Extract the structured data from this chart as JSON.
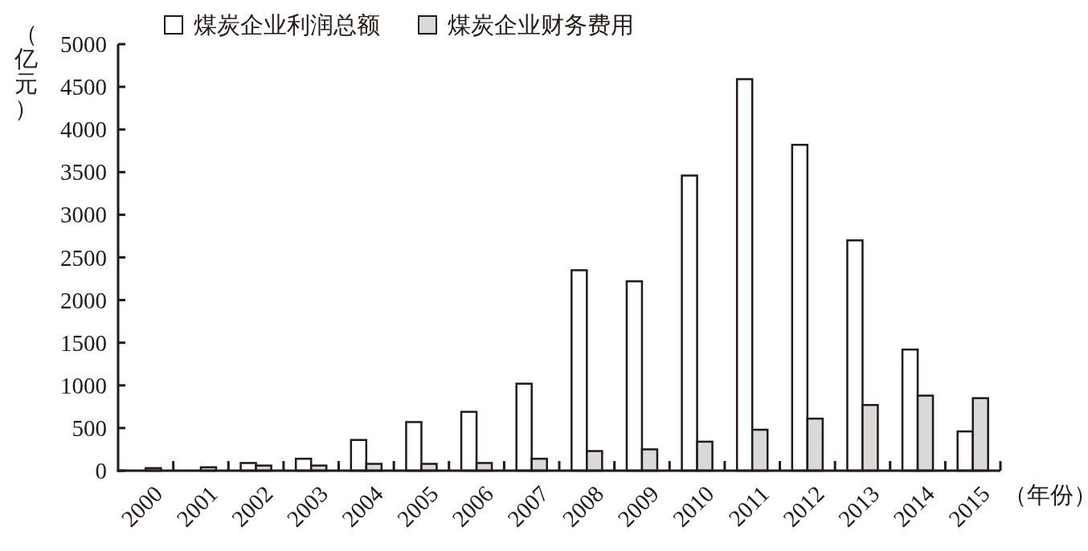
{
  "chart_data": {
    "type": "bar",
    "categories": [
      "2000",
      "2001",
      "2002",
      "2003",
      "2004",
      "2005",
      "2006",
      "2007",
      "2008",
      "2009",
      "2010",
      "2011",
      "2012",
      "2013",
      "2014",
      "2015"
    ],
    "series": [
      {
        "name": "煤炭企业利润总额",
        "color": "#ffffff",
        "values": [
          0,
          0,
          90,
          140,
          360,
          570,
          690,
          1020,
          2350,
          2220,
          3460,
          4590,
          3820,
          2700,
          1420,
          460
        ]
      },
      {
        "name": "煤炭企业财务费用",
        "color": "#d9d9d9",
        "values": [
          30,
          40,
          60,
          60,
          80,
          80,
          90,
          140,
          230,
          250,
          340,
          480,
          610,
          770,
          880,
          850
        ]
      }
    ],
    "ylabel": "（亿元）",
    "xlabel": "（年份）",
    "ylim": [
      0,
      5000
    ],
    "yticks": [
      0,
      500,
      1000,
      1500,
      2000,
      2500,
      3000,
      3500,
      4000,
      4500,
      5000
    ],
    "legend": "top",
    "grid": false
  }
}
